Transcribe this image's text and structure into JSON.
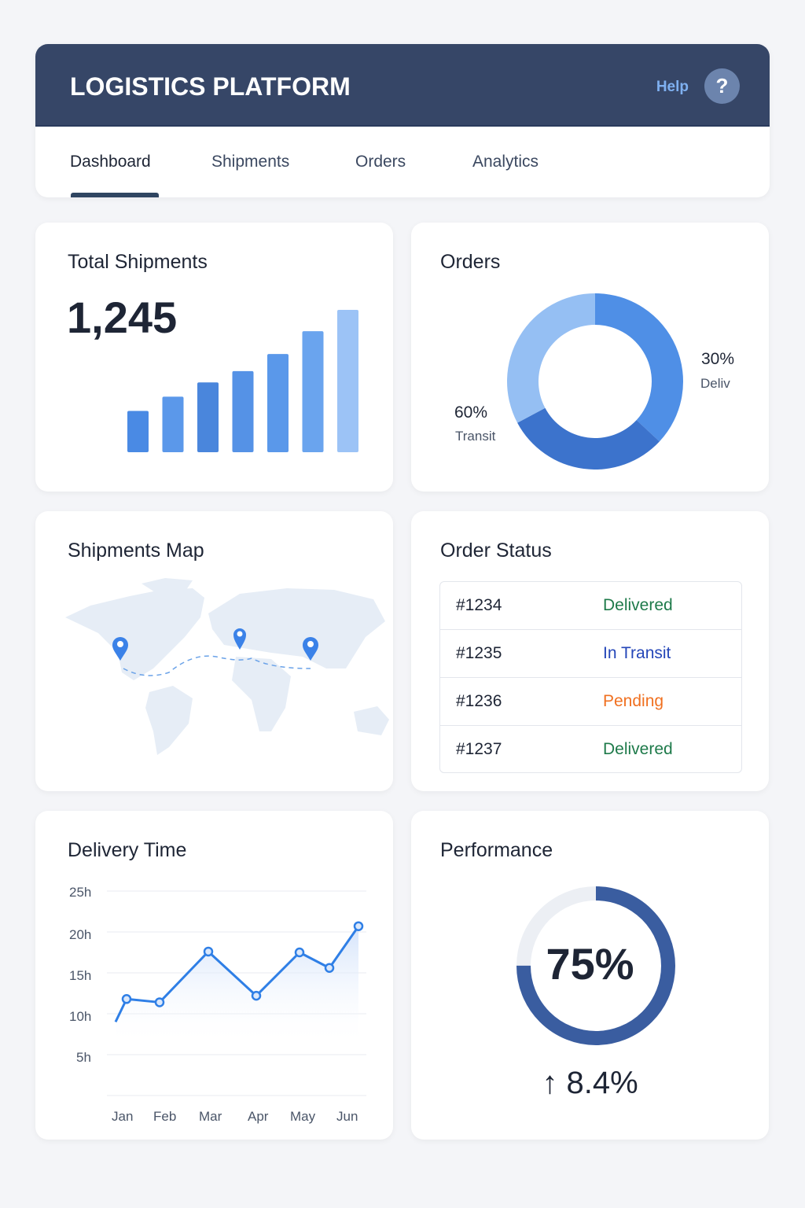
{
  "header": {
    "title": "LOGISTICS PLATFORM",
    "help_label": "Help",
    "help_icon": "?"
  },
  "tabs": [
    {
      "label": "Dashboard",
      "active": true
    },
    {
      "label": "Shipments"
    },
    {
      "label": "Orders"
    },
    {
      "label": "Analytics"
    }
  ],
  "total_shipments": {
    "title": "Total Shipments",
    "value": "1,245",
    "chart_data": {
      "type": "bar",
      "values_relative": [
        0.29,
        0.39,
        0.49,
        0.57,
        0.69,
        0.85,
        1.0
      ],
      "colors": [
        "#4a8ae4",
        "#5b98ea",
        "#4a86dc",
        "#5592e6",
        "#5a98ea",
        "#6aa4ee",
        "#9cc3f6"
      ]
    }
  },
  "orders": {
    "title": "Orders",
    "chart_data": {
      "type": "pie",
      "style": "donut",
      "slices": [
        {
          "label": "Deliv",
          "percent": "30%",
          "color": "#4f8fe6"
        },
        {
          "label": "",
          "color": "#3c73cc"
        },
        {
          "label": "Transit",
          "percent": "60%",
          "color": "#95bff3"
        }
      ]
    }
  },
  "map": {
    "title": "Shipments Map",
    "pins": [
      "North America",
      "Europe",
      "Asia"
    ],
    "colors": {
      "land": "#e6edf6",
      "pin": "#3b82e8"
    }
  },
  "order_status": {
    "title": "Order Status",
    "rows": [
      {
        "id": "#1234",
        "status": "Delivered",
        "color": "#1e7a4a"
      },
      {
        "id": "#1235",
        "status": "In Transit",
        "color": "#2446b8"
      },
      {
        "id": "#1236",
        "status": "Pending",
        "color": "#f07020"
      },
      {
        "id": "#1237",
        "status": "Delivered",
        "color": "#1e7a4a"
      }
    ]
  },
  "delivery_time": {
    "title": "Delivery Time",
    "chart_data": {
      "type": "line",
      "x": [
        "Jan",
        "Feb",
        "Mar",
        "Apr",
        "May",
        "Jun"
      ],
      "y_ticks": [
        "25h",
        "20h",
        "15h",
        "10h",
        "5h"
      ],
      "ylim": [
        0,
        25
      ],
      "grid": true,
      "points": [
        {
          "x": "Jan",
          "y": 9
        },
        {
          "x": "Jan",
          "y": 11.8
        },
        {
          "x": "Feb",
          "y": 11.4
        },
        {
          "x": "Mar",
          "y": 17.6
        },
        {
          "x": "Apr",
          "y": 12.2
        },
        {
          "x": "May",
          "y": 17.5
        },
        {
          "x": "May-Jun",
          "y": 15.6
        },
        {
          "x": "Jun",
          "y": 20.7
        }
      ],
      "color": "#2f7fe6"
    }
  },
  "performance": {
    "title": "Performance",
    "value": "75%",
    "progress": 0.75,
    "change": "8.4%",
    "change_icon": "arrow-up",
    "color": "#3a5da0"
  }
}
